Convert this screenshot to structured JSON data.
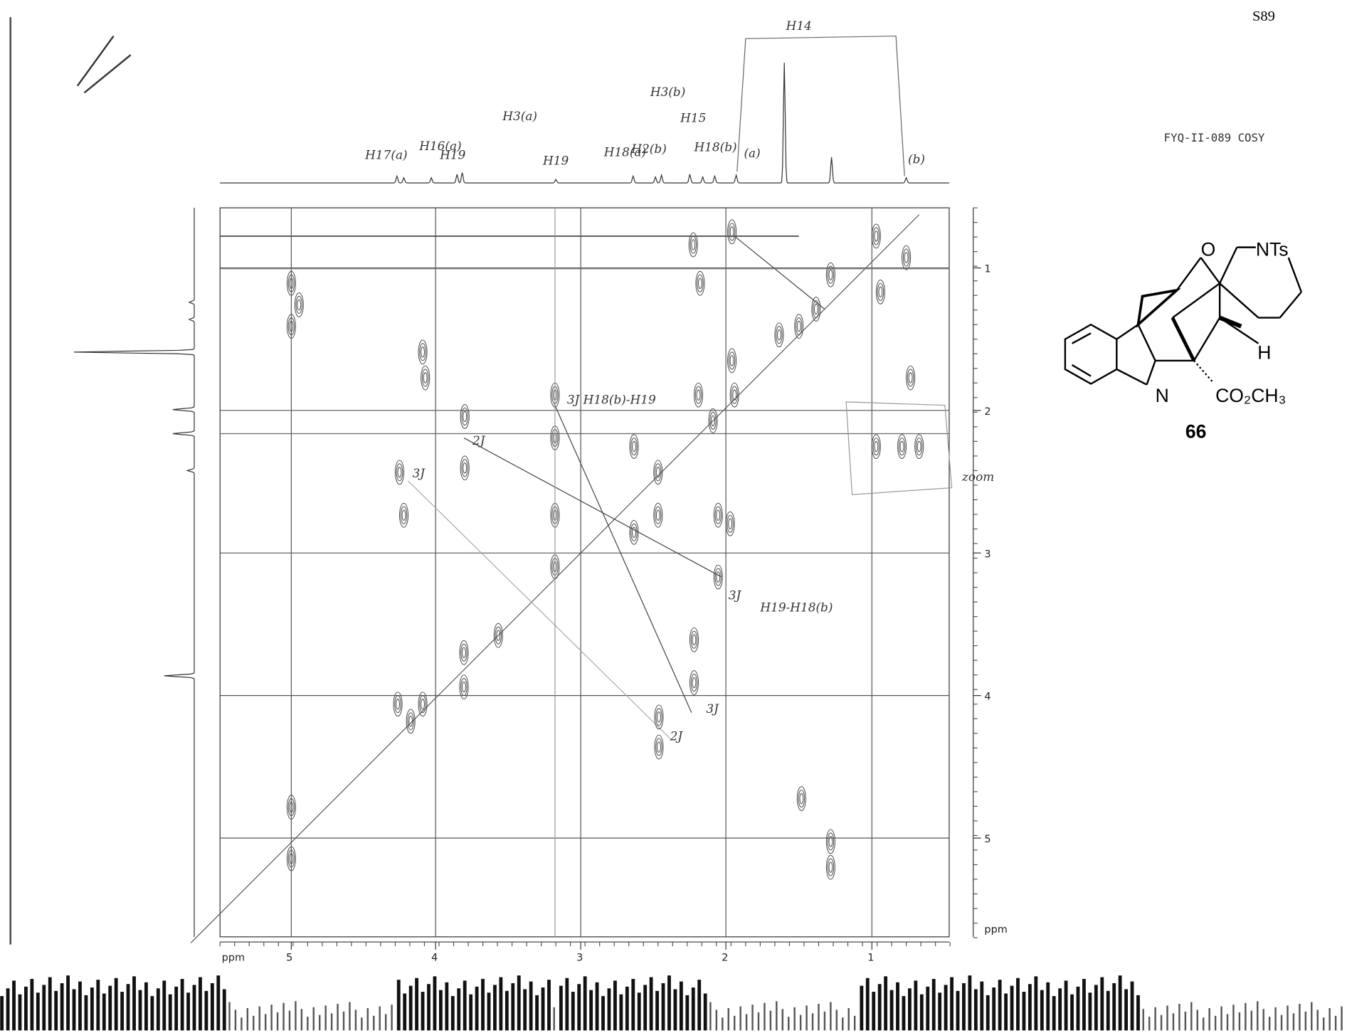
{
  "page_number": "S89",
  "experiment": "FYQ-II-089 COSY",
  "compound": {
    "number": "66",
    "atoms": [
      "O",
      "NTs",
      "H",
      "N",
      "CO₂CH₃"
    ]
  },
  "x_axis": {
    "unit": "ppm",
    "ticks": [
      "5",
      "4",
      "3",
      "2",
      "1"
    ]
  },
  "y_axis": {
    "unit": "ppm",
    "ticks": [
      "1",
      "2",
      "3",
      "4",
      "5"
    ]
  },
  "annotations": {
    "top": [
      "H14",
      "H17(a)",
      "H16(a)",
      "H19",
      "H3(a)",
      "H19",
      "H18(a)",
      "H2(b)",
      "H3(b)",
      "H15",
      "H18(b)",
      "(a)",
      "(b)"
    ],
    "cross": [
      "3J H18(b)-H19",
      "2J",
      "3J",
      "3J",
      "H19-H18(b)",
      "3J",
      "2J",
      "zoom"
    ]
  }
}
